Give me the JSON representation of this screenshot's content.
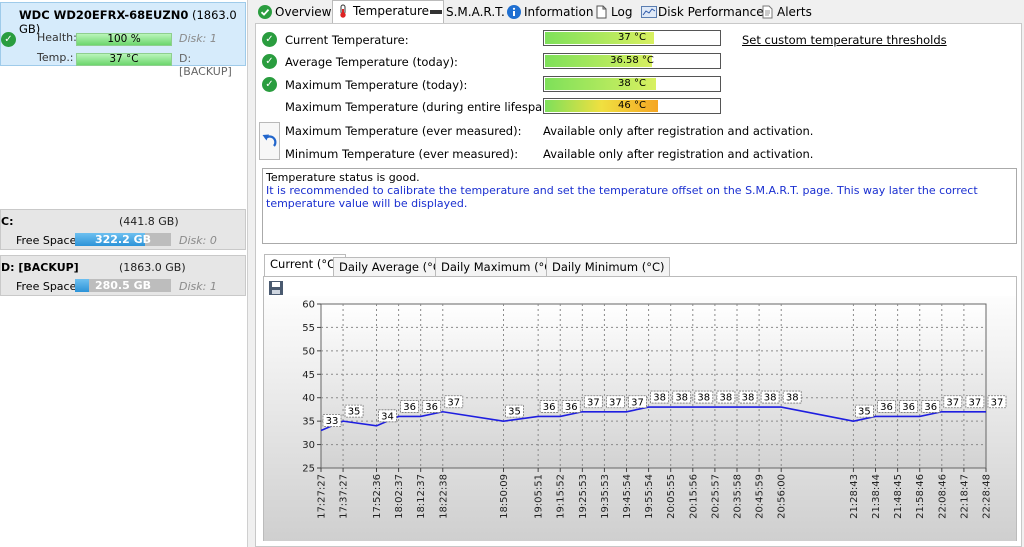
{
  "left": {
    "disk": {
      "name": "WDC WD20EFRX-68EUZN0",
      "size": "(1863.0 GB)",
      "health_label": "Health:",
      "health_value": "100 %",
      "health_disk": "Disk: 1",
      "temp_label": "Temp.:",
      "temp_value": "37 °C",
      "temp_drive": "D: [BACKUP]"
    },
    "volumes": [
      {
        "title": "C:",
        "size": "(441.8 GB)",
        "free_label": "Free Space",
        "free_value": "322.2 GB",
        "free_fraction": 0.73,
        "disk": "Disk: 0"
      },
      {
        "title": "D: [BACKUP]",
        "size": "(1863.0 GB)",
        "free_label": "Free Space",
        "free_value": "280.5 GB",
        "free_fraction": 0.15,
        "disk": "Disk: 1"
      }
    ]
  },
  "tabs": [
    {
      "label": "Overview",
      "icon": "check-icon"
    },
    {
      "label": "Temperature",
      "icon": "thermometer-icon"
    },
    {
      "label": "S.M.A.R.T.",
      "icon": "drive-icon"
    },
    {
      "label": "Information",
      "icon": "info-icon"
    },
    {
      "label": "Log",
      "icon": "document-icon"
    },
    {
      "label": "Disk Performance",
      "icon": "performance-icon"
    },
    {
      "label": "Alerts",
      "icon": "alerts-icon"
    }
  ],
  "temperature": {
    "rows": [
      {
        "label": "Current Temperature:",
        "value": "37 °C",
        "fraction": 0.62,
        "ok": true
      },
      {
        "label": "Average Temperature (today):",
        "value": "36.58 °C",
        "fraction": 0.61,
        "ok": true
      },
      {
        "label": "Maximum Temperature (today):",
        "value": "38 °C",
        "fraction": 0.63,
        "ok": true
      },
      {
        "label": "Maximum Temperature (during entire lifespan):",
        "value": "46 °C",
        "fraction": 0.64,
        "ok": false
      }
    ],
    "set_thresholds_link": "Set custom temperature thresholds",
    "ever_rows": [
      {
        "label": "Maximum Temperature (ever measured):",
        "value": "Available only after registration and activation."
      },
      {
        "label": "Minimum Temperature (ever measured):",
        "value": "Available only after registration and activation."
      }
    ],
    "status_line1": "Temperature status is good.",
    "status_line2": "It is recommended to calibrate the temperature and set the temperature offset on the S.M.A.R.T. page. This way later the correct temperature value will be displayed."
  },
  "chart_tabs": [
    "Current (°C)",
    "Daily Average (°C)",
    "Daily Maximum (°C)",
    "Daily Minimum (°C)"
  ],
  "chart_data": {
    "type": "line",
    "ylim": [
      25,
      60
    ],
    "yticks": [
      25,
      30,
      35,
      40,
      45,
      50,
      55,
      60
    ],
    "grid": true,
    "color": "#1e1ee0",
    "x": [
      "17:27:27",
      "17:37:27",
      "17:52:36",
      "18:02:37",
      "18:12:37",
      "18:22:38",
      "18:50:09",
      "19:05:51",
      "19:15:52",
      "19:25:53",
      "19:35:53",
      "19:45:54",
      "19:55:54",
      "20:05:55",
      "20:15:56",
      "20:25:57",
      "20:35:58",
      "20:45:59",
      "20:56:00",
      "21:28:43",
      "21:38:44",
      "21:48:45",
      "21:58:46",
      "22:08:46",
      "22:18:47",
      "22:28:48"
    ],
    "y": [
      33,
      35,
      34,
      36,
      36,
      37,
      35,
      36,
      36,
      37,
      37,
      37,
      38,
      38,
      38,
      38,
      38,
      38,
      38,
      35,
      36,
      36,
      36,
      37,
      37,
      37
    ],
    "labels": [
      "33",
      "35",
      "34",
      "36",
      "36",
      "37",
      "35",
      "36",
      "36",
      "37",
      "37",
      "37",
      "38",
      "38",
      "38",
      "38",
      "38",
      "38",
      "38",
      "35",
      "36",
      "36",
      "36",
      "37",
      "37",
      "37"
    ]
  }
}
